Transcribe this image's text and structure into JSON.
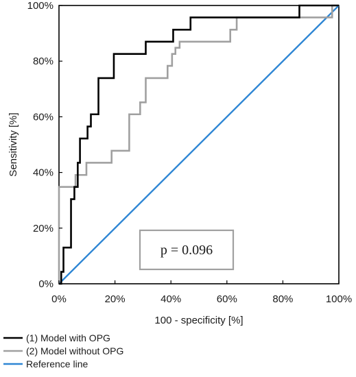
{
  "chart_data": {
    "type": "line",
    "xlabel": "100 - specificity [%]",
    "ylabel": "Sensitivity [%]",
    "xlim": [
      0,
      100
    ],
    "ylim": [
      0,
      100
    ],
    "x_ticks": [
      "0%",
      "20%",
      "40%",
      "60%",
      "80%",
      "100%"
    ],
    "y_ticks": [
      "0%",
      "20%",
      "40%",
      "60%",
      "80%",
      "100%"
    ],
    "x_tick_values": [
      0,
      20,
      40,
      60,
      80,
      100
    ],
    "y_tick_values": [
      0,
      20,
      40,
      60,
      80,
      100
    ],
    "grid": false,
    "legend_position": "bottom",
    "annotation": "p = 0.096",
    "series": [
      {
        "name": "(1) Model with OPG",
        "color": "#000000",
        "points": [
          [
            0,
            0
          ],
          [
            0.8,
            0
          ],
          [
            0.8,
            4.3
          ],
          [
            1.6,
            4.3
          ],
          [
            1.6,
            13
          ],
          [
            4.3,
            13
          ],
          [
            4.3,
            30.4
          ],
          [
            5.5,
            30.4
          ],
          [
            5.5,
            34.8
          ],
          [
            6.7,
            34.8
          ],
          [
            6.7,
            43.5
          ],
          [
            7.5,
            43.5
          ],
          [
            7.5,
            52.2
          ],
          [
            10.2,
            52.2
          ],
          [
            10.2,
            56.5
          ],
          [
            11.4,
            56.5
          ],
          [
            11.4,
            60.9
          ],
          [
            14.1,
            60.9
          ],
          [
            14.1,
            73.9
          ],
          [
            19.6,
            73.9
          ],
          [
            19.6,
            82.6
          ],
          [
            31,
            82.6
          ],
          [
            31,
            87
          ],
          [
            40.8,
            87
          ],
          [
            40.8,
            91.3
          ],
          [
            47,
            91.3
          ],
          [
            47,
            95.7
          ],
          [
            85.9,
            95.7
          ],
          [
            85.9,
            100
          ],
          [
            100,
            100
          ]
        ]
      },
      {
        "name": "(2) Model without OPG",
        "color": "#a0a0a0",
        "points": [
          [
            0,
            0
          ],
          [
            0,
            34.8
          ],
          [
            5.9,
            34.8
          ],
          [
            5.9,
            39.1
          ],
          [
            9.8,
            39.1
          ],
          [
            9.8,
            43.5
          ],
          [
            18.8,
            43.5
          ],
          [
            18.8,
            47.8
          ],
          [
            25.1,
            47.8
          ],
          [
            25.1,
            60.9
          ],
          [
            29,
            60.9
          ],
          [
            29,
            65.2
          ],
          [
            31,
            65.2
          ],
          [
            31,
            73.9
          ],
          [
            38.8,
            73.9
          ],
          [
            38.8,
            78.3
          ],
          [
            40.4,
            78.3
          ],
          [
            40.4,
            82.6
          ],
          [
            41.6,
            82.6
          ],
          [
            41.6,
            84.8
          ],
          [
            43.1,
            84.8
          ],
          [
            43.1,
            87
          ],
          [
            61.2,
            87
          ],
          [
            61.2,
            91.3
          ],
          [
            63.5,
            91.3
          ],
          [
            63.5,
            95.7
          ],
          [
            97.6,
            95.7
          ],
          [
            97.6,
            100
          ],
          [
            100,
            100
          ]
        ]
      },
      {
        "name": "Reference line",
        "color": "#2e86d4",
        "points": [
          [
            0,
            0
          ],
          [
            100,
            100
          ]
        ]
      }
    ]
  }
}
